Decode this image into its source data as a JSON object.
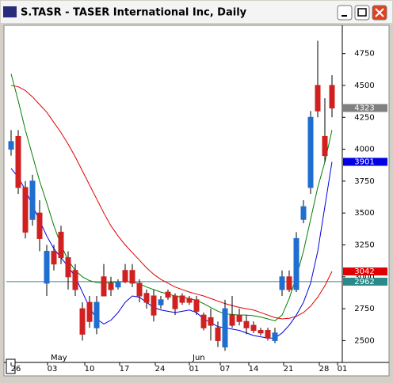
{
  "window_title": "S.TASR - TASER International Inc, Daily",
  "chart_data": {
    "type": "candlestick",
    "open": [
      4000,
      4100,
      3700,
      3450,
      3500,
      2950,
      3200,
      3350,
      3150,
      3050,
      2750,
      2800,
      2600,
      3000,
      2950,
      2920,
      3050,
      3050,
      2950,
      2870,
      2850,
      2780,
      2880,
      2850,
      2850,
      2830,
      2820,
      2700,
      2680,
      2600,
      2450,
      2700,
      2700,
      2650,
      2620,
      2580,
      2580,
      2500,
      2900,
      3000,
      2900,
      3450,
      3700,
      4500,
      4100,
      4500
    ],
    "high": [
      4150,
      4150,
      3750,
      3800,
      3600,
      3250,
      3250,
      3400,
      3200,
      3100,
      2800,
      2850,
      2850,
      3100,
      3000,
      2980,
      3100,
      3100,
      2980,
      2900,
      2900,
      2850,
      2900,
      2870,
      2870,
      2850,
      2850,
      2720,
      2750,
      2650,
      2820,
      2850,
      2750,
      2700,
      2650,
      2600,
      2600,
      2600,
      3050,
      3050,
      3350,
      3600,
      4300,
      4850,
      4400,
      4580
    ],
    "low": [
      3950,
      3650,
      3300,
      3400,
      3200,
      2850,
      3050,
      3100,
      2900,
      2850,
      2500,
      2600,
      2550,
      2850,
      2850,
      2900,
      2950,
      2920,
      2800,
      2750,
      2650,
      2750,
      2820,
      2700,
      2780,
      2780,
      2700,
      2580,
      2500,
      2450,
      2420,
      2600,
      2620,
      2550,
      2560,
      2540,
      2500,
      2480,
      2850,
      2880,
      2880,
      3420,
      3650,
      4250,
      3900,
      4250
    ],
    "close": [
      4060,
      3700,
      3350,
      3750,
      3300,
      3200,
      3100,
      3150,
      3000,
      2900,
      2550,
      2650,
      2800,
      2850,
      2900,
      2960,
      2960,
      2950,
      2850,
      2800,
      2700,
      2820,
      2840,
      2750,
      2800,
      2800,
      2730,
      2600,
      2620,
      2500,
      2750,
      2620,
      2650,
      2600,
      2580,
      2560,
      2520,
      2560,
      3000,
      2900,
      3300,
      3550,
      4250,
      4300,
      3950,
      4323
    ],
    "series": [
      {
        "color": "#008000",
        "values": [
          4590,
          4380,
          4150,
          3950,
          3750,
          3580,
          3400,
          3250,
          3130,
          3050,
          3000,
          2970,
          2955,
          2950,
          2955,
          2960,
          2965,
          2960,
          2945,
          2920,
          2900,
          2880,
          2865,
          2850,
          2840,
          2830,
          2815,
          2790,
          2760,
          2730,
          2710,
          2705,
          2700,
          2700,
          2695,
          2685,
          2670,
          2655,
          2700,
          2830,
          3000,
          3200,
          3450,
          3700,
          3900,
          4150
        ]
      },
      {
        "color": "#e00000",
        "values": [
          4500,
          4490,
          4460,
          4410,
          4350,
          4290,
          4210,
          4130,
          4040,
          3940,
          3830,
          3720,
          3610,
          3500,
          3400,
          3320,
          3250,
          3190,
          3130,
          3070,
          3020,
          2980,
          2950,
          2920,
          2900,
          2880,
          2865,
          2850,
          2830,
          2810,
          2790,
          2775,
          2760,
          2750,
          2740,
          2720,
          2700,
          2680,
          2670,
          2675,
          2690,
          2720,
          2770,
          2840,
          2930,
          3042
        ]
      },
      {
        "color": "#0000e0",
        "values": [
          3850,
          3780,
          3680,
          3560,
          3440,
          3320,
          3220,
          3150,
          3080,
          3000,
          2880,
          2760,
          2670,
          2630,
          2660,
          2720,
          2800,
          2850,
          2840,
          2800,
          2760,
          2740,
          2730,
          2720,
          2730,
          2740,
          2720,
          2670,
          2640,
          2610,
          2600,
          2590,
          2580,
          2560,
          2540,
          2530,
          2520,
          2520,
          2560,
          2620,
          2700,
          2800,
          2950,
          3200,
          3550,
          3901
        ]
      }
    ],
    "up_color": "#1e6fd0",
    "down_color": "#d02020",
    "ylim": [
      2329,
      4971
    ],
    "yticks": [
      2500,
      2750,
      3000,
      3250,
      3500,
      3750,
      4000,
      4250,
      4500,
      4750
    ],
    "x_tick_labels": [
      "26",
      "03",
      "10",
      "17",
      "24",
      "01",
      "07",
      "14",
      "21",
      "28",
      "01"
    ],
    "month_labels": [
      "May",
      "Jun"
    ],
    "reference_line": {
      "value": 2962,
      "color": "#2a8a8a"
    },
    "price_tags": [
      {
        "value": 4323,
        "color": "#808080"
      },
      {
        "value": 3901,
        "color": "#0000e0"
      },
      {
        "value": 3042,
        "color": "#e00000"
      },
      {
        "value": 2962,
        "color": "#2a8a8a"
      }
    ]
  }
}
